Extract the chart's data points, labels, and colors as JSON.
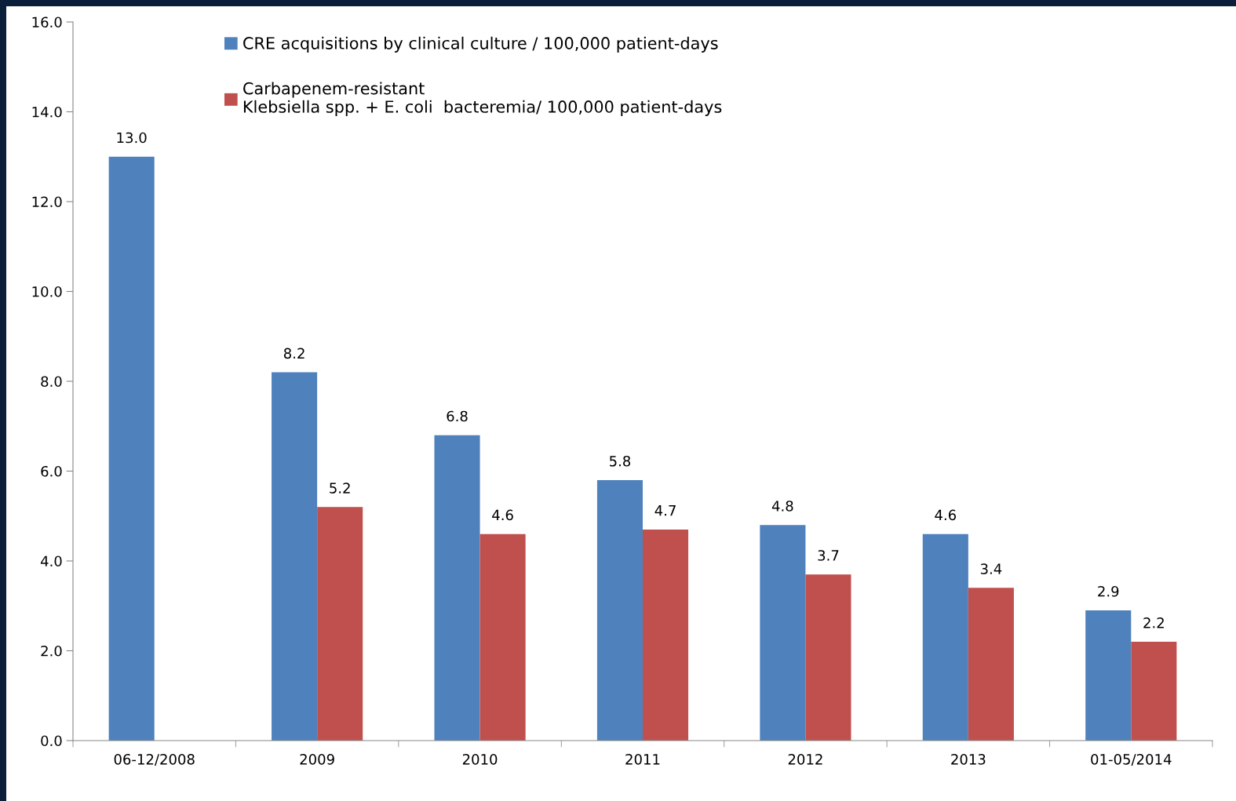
{
  "chart_data": {
    "type": "bar",
    "categories": [
      "06-12/2008",
      "2009",
      "2010",
      "2011",
      "2012",
      "2013",
      "01-05/2014"
    ],
    "series": [
      {
        "name": "CRE acquisitions by clinical culture / 100,000 patient-days",
        "color": "#4f81bd",
        "values": [
          13.0,
          8.2,
          6.8,
          5.8,
          4.8,
          4.6,
          2.9
        ],
        "value_labels": [
          "13.0",
          "8.2",
          "6.8",
          "5.8",
          "4.8",
          "4.6",
          "2.9"
        ]
      },
      {
        "name": "Carbapenem-resistant\nKlebsiella spp. + E. coli  bacteremia/ 100,000 patient-days",
        "color": "#c0504d",
        "values": [
          null,
          5.2,
          4.6,
          4.7,
          3.7,
          3.4,
          2.2
        ],
        "value_labels": [
          null,
          "5.2",
          "4.6",
          "4.7",
          "3.7",
          "3.4",
          "2.2"
        ]
      }
    ],
    "ylim": [
      0,
      16
    ],
    "yticks": [
      {
        "value": 0,
        "label": "0.0"
      },
      {
        "value": 2,
        "label": "2.0"
      },
      {
        "value": 4,
        "label": "4.0"
      },
      {
        "value": 6,
        "label": "6.0"
      },
      {
        "value": 8,
        "label": "8.0"
      },
      {
        "value": 10,
        "label": "10.0"
      },
      {
        "value": 12,
        "label": "12.0"
      },
      {
        "value": 14,
        "label": "14.0"
      },
      {
        "value": 16,
        "label": "16.0"
      }
    ],
    "grid": false,
    "legend": "top left"
  }
}
